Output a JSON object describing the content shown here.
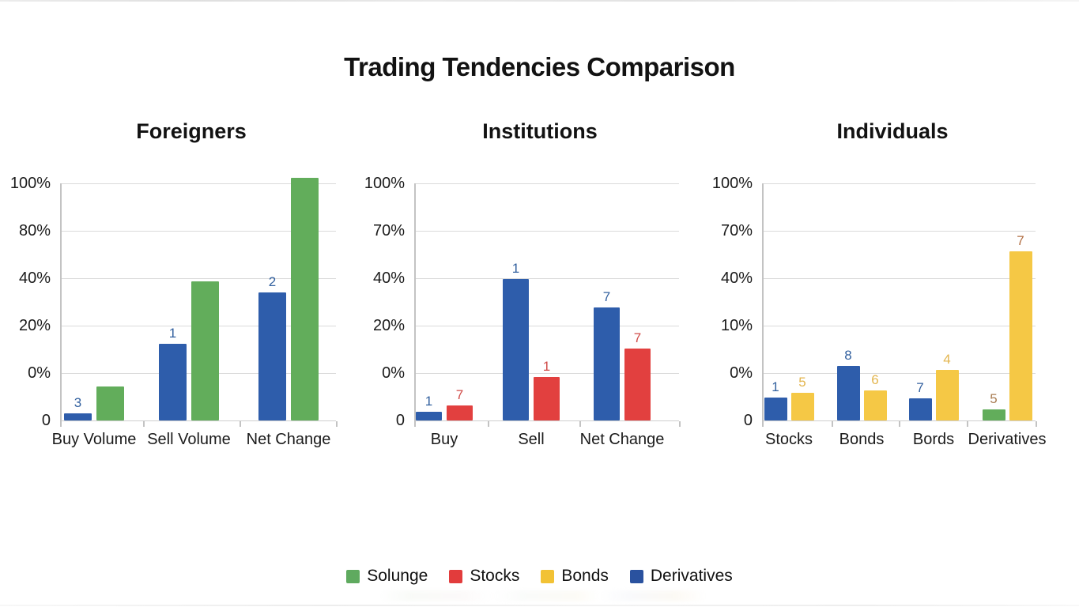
{
  "title": "Trading Tendencies Comparison",
  "colors": {
    "green": "#62ad5b",
    "red": "#e2403f",
    "yellow": "#f5c845",
    "blue": "#2e5dab"
  },
  "legend": {
    "items": [
      {
        "label": "Solunge",
        "color": "#5faa5f"
      },
      {
        "label": "Stocks",
        "color": "#e23c3c"
      },
      {
        "label": "Bonds",
        "color": "#f2c234"
      },
      {
        "label": "Derivatives",
        "color": "#2a529f"
      }
    ]
  },
  "chart_data": [
    {
      "type": "bar",
      "title": "Foreigners",
      "y_tick_labels": [
        "100%",
        "80%",
        "40%",
        "20%",
        "0%",
        "0"
      ],
      "categories": [
        "Buy Volume",
        "Sell Volume",
        "Net Change"
      ],
      "grid": true,
      "axis_range_note": "top gridline 100%, baseline 0",
      "groups": [
        {
          "category": "Buy Volume",
          "bars": [
            {
              "series": "Derivatives",
              "color": "#2e5dab",
              "height_pct_of_axis": 3.0,
              "label": "3",
              "label_color": "#33619f"
            },
            {
              "series": "Solunge",
              "color": "#62ad5b",
              "height_pct_of_axis": 14.3
            }
          ]
        },
        {
          "category": "Sell Volume",
          "bars": [
            {
              "series": "Derivatives",
              "color": "#2e5dab",
              "height_pct_of_axis": 32.3,
              "label": "1",
              "label_color": "#33619f"
            },
            {
              "series": "Solunge",
              "color": "#62ad5b",
              "height_pct_of_axis": 58.7
            }
          ]
        },
        {
          "category": "Net Change",
          "bars": [
            {
              "series": "Derivatives",
              "color": "#2e5dab",
              "height_pct_of_axis": 54.0,
              "label": "2",
              "label_color": "#33619f"
            },
            {
              "series": "Solunge",
              "color": "#62ad5b",
              "height_pct_of_axis": 102.3
            }
          ]
        }
      ]
    },
    {
      "type": "bar",
      "title": "Institutions",
      "y_tick_labels": [
        "100%",
        "70%",
        "40%",
        "20%",
        "0%",
        "0"
      ],
      "categories": [
        "Buy",
        "Sell",
        "Net Change"
      ],
      "grid": true,
      "axis_range_note": "top gridline 100%, baseline 0",
      "groups": [
        {
          "category": "Buy",
          "bars": [
            {
              "series": "Derivatives",
              "color": "#2e5dab",
              "height_pct_of_axis": 3.7,
              "label": "1",
              "label_color": "#33619f"
            },
            {
              "series": "Stocks",
              "color": "#e2403f",
              "height_pct_of_axis": 6.3,
              "label": "7",
              "label_color": "#d04b48"
            }
          ]
        },
        {
          "category": "Sell",
          "bars": [
            {
              "series": "Derivatives",
              "color": "#2e5dab",
              "height_pct_of_axis": 59.7,
              "label": "1",
              "label_color": "#33619f"
            },
            {
              "series": "Stocks",
              "color": "#e2403f",
              "height_pct_of_axis": 18.3,
              "label": "1",
              "label_color": "#d04b48"
            }
          ]
        },
        {
          "category": "Net Change",
          "bars": [
            {
              "series": "Derivatives",
              "color": "#2e5dab",
              "height_pct_of_axis": 47.7,
              "label": "7",
              "label_color": "#33619f"
            },
            {
              "series": "Stocks",
              "color": "#e2403f",
              "height_pct_of_axis": 30.3,
              "label": "7",
              "label_color": "#d04b48"
            }
          ]
        }
      ]
    },
    {
      "type": "bar",
      "title": "Individuals",
      "y_tick_labels": [
        "100%",
        "70%",
        "40%",
        "10%",
        "0%",
        "0"
      ],
      "categories": [
        "Stocks",
        "Bonds",
        "Bords",
        "Derivatives"
      ],
      "grid": true,
      "axis_range_note": "top gridline 100%, baseline 0",
      "groups": [
        {
          "category": "Stocks",
          "bars": [
            {
              "series": "Derivatives",
              "color": "#2e5dab",
              "height_pct_of_axis": 9.7,
              "label": "1",
              "label_color": "#33619f"
            },
            {
              "series": "Bonds",
              "color": "#f5c845",
              "height_pct_of_axis": 11.7,
              "label": "5",
              "label_color": "#e3b54e"
            }
          ]
        },
        {
          "category": "Bonds",
          "bars": [
            {
              "series": "Derivatives",
              "color": "#2e5dab",
              "height_pct_of_axis": 23.0,
              "label": "8",
              "label_color": "#33619f"
            },
            {
              "series": "Bonds",
              "color": "#f5c845",
              "height_pct_of_axis": 12.7,
              "label": "6",
              "label_color": "#e3b54e"
            }
          ]
        },
        {
          "category": "Bords",
          "bars": [
            {
              "series": "Derivatives",
              "color": "#2e5dab",
              "height_pct_of_axis": 9.3,
              "label": "7",
              "label_color": "#33619f"
            },
            {
              "series": "Bonds",
              "color": "#f5c845",
              "height_pct_of_axis": 21.3,
              "label": "4",
              "label_color": "#e3b54e"
            }
          ]
        },
        {
          "category": "Derivatives",
          "bars": [
            {
              "series": "Solunge",
              "color": "#62ad5b",
              "height_pct_of_axis": 4.7,
              "label": "5",
              "label_color": "#a97c52"
            },
            {
              "series": "Bonds",
              "color": "#f5c845",
              "height_pct_of_axis": 71.3,
              "label": "7",
              "label_color": "#b26f44"
            }
          ]
        }
      ]
    }
  ]
}
